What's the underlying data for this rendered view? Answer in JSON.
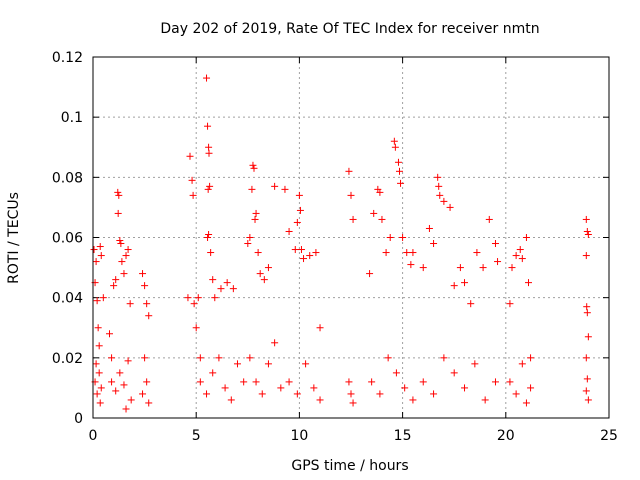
{
  "chart_data": {
    "type": "scatter",
    "title": "Day 202 of 2019, Rate Of TEC Index for receiver nmtn",
    "xlabel": "GPS time / hours",
    "ylabel": "ROTI / TECUs",
    "xlim": [
      0,
      25
    ],
    "ylim": [
      0,
      0.12
    ],
    "x_ticks": [
      "0",
      "5",
      "10",
      "15",
      "20",
      "25"
    ],
    "y_ticks": [
      "0",
      "0.02",
      "0.04",
      "0.06",
      "0.08",
      "0.1",
      "0.12"
    ],
    "x_tick_values": [
      0,
      5,
      10,
      15,
      20,
      25
    ],
    "y_tick_values": [
      0,
      0.02,
      0.04,
      0.06,
      0.08,
      0.1,
      0.12
    ],
    "grid": true,
    "marker": "plus",
    "color": "#ff0000",
    "series": [
      {
        "values_description_points": [
          [
            0.05,
            0.056
          ],
          [
            0.1,
            0.045
          ],
          [
            0.15,
            0.052
          ],
          [
            0.2,
            0.039
          ],
          [
            0.25,
            0.03
          ],
          [
            0.3,
            0.024
          ],
          [
            0.35,
            0.057
          ],
          [
            0.4,
            0.054
          ],
          [
            0.5,
            0.04
          ],
          [
            0.1,
            0.012
          ],
          [
            0.2,
            0.008
          ],
          [
            0.3,
            0.015
          ],
          [
            0.4,
            0.01
          ],
          [
            0.15,
            0.018
          ],
          [
            0.35,
            0.005
          ],
          [
            0.8,
            0.028
          ],
          [
            0.9,
            0.02
          ],
          [
            1.0,
            0.044
          ],
          [
            1.1,
            0.046
          ],
          [
            1.2,
            0.075
          ],
          [
            1.25,
            0.074
          ],
          [
            1.22,
            0.068
          ],
          [
            1.3,
            0.059
          ],
          [
            1.35,
            0.058
          ],
          [
            1.4,
            0.052
          ],
          [
            1.5,
            0.048
          ],
          [
            1.6,
            0.054
          ],
          [
            1.7,
            0.056
          ],
          [
            1.8,
            0.038
          ],
          [
            0.9,
            0.012
          ],
          [
            1.1,
            0.009
          ],
          [
            1.3,
            0.015
          ],
          [
            1.5,
            0.011
          ],
          [
            1.7,
            0.019
          ],
          [
            1.85,
            0.006
          ],
          [
            1.6,
            0.003
          ],
          [
            2.4,
            0.048
          ],
          [
            2.5,
            0.044
          ],
          [
            2.6,
            0.038
          ],
          [
            2.7,
            0.034
          ],
          [
            2.5,
            0.02
          ],
          [
            2.6,
            0.012
          ],
          [
            2.4,
            0.008
          ],
          [
            2.7,
            0.005
          ],
          [
            4.6,
            0.04
          ],
          [
            4.7,
            0.087
          ],
          [
            4.8,
            0.079
          ],
          [
            4.85,
            0.074
          ],
          [
            4.9,
            0.038
          ],
          [
            5.0,
            0.03
          ],
          [
            5.1,
            0.04
          ],
          [
            5.2,
            0.02
          ],
          [
            5.5,
            0.113
          ],
          [
            5.55,
            0.097
          ],
          [
            5.6,
            0.09
          ],
          [
            5.62,
            0.088
          ],
          [
            5.65,
            0.077
          ],
          [
            5.58,
            0.076
          ],
          [
            5.6,
            0.061
          ],
          [
            5.55,
            0.06
          ],
          [
            5.7,
            0.055
          ],
          [
            5.8,
            0.046
          ],
          [
            5.9,
            0.04
          ],
          [
            6.2,
            0.043
          ],
          [
            6.5,
            0.045
          ],
          [
            6.8,
            0.043
          ],
          [
            5.2,
            0.012
          ],
          [
            5.5,
            0.008
          ],
          [
            5.8,
            0.015
          ],
          [
            6.1,
            0.02
          ],
          [
            6.4,
            0.01
          ],
          [
            6.7,
            0.006
          ],
          [
            7.0,
            0.018
          ],
          [
            7.3,
            0.012
          ],
          [
            7.5,
            0.058
          ],
          [
            7.6,
            0.06
          ],
          [
            7.7,
            0.076
          ],
          [
            7.75,
            0.084
          ],
          [
            7.8,
            0.083
          ],
          [
            7.9,
            0.068
          ],
          [
            7.85,
            0.066
          ],
          [
            8.0,
            0.055
          ],
          [
            8.1,
            0.048
          ],
          [
            8.3,
            0.046
          ],
          [
            8.5,
            0.05
          ],
          [
            8.8,
            0.077
          ],
          [
            7.6,
            0.02
          ],
          [
            7.9,
            0.012
          ],
          [
            8.2,
            0.008
          ],
          [
            8.5,
            0.018
          ],
          [
            8.8,
            0.025
          ],
          [
            9.1,
            0.01
          ],
          [
            9.3,
            0.076
          ],
          [
            9.5,
            0.062
          ],
          [
            9.8,
            0.056
          ],
          [
            9.9,
            0.065
          ],
          [
            10.0,
            0.074
          ],
          [
            10.05,
            0.069
          ],
          [
            10.1,
            0.056
          ],
          [
            10.2,
            0.053
          ],
          [
            10.5,
            0.054
          ],
          [
            10.8,
            0.055
          ],
          [
            11.0,
            0.03
          ],
          [
            9.5,
            0.012
          ],
          [
            9.9,
            0.008
          ],
          [
            10.3,
            0.018
          ],
          [
            10.7,
            0.01
          ],
          [
            11.0,
            0.006
          ],
          [
            12.4,
            0.082
          ],
          [
            12.5,
            0.074
          ],
          [
            12.6,
            0.066
          ],
          [
            12.4,
            0.012
          ],
          [
            12.5,
            0.008
          ],
          [
            12.6,
            0.005
          ],
          [
            13.4,
            0.048
          ],
          [
            13.6,
            0.068
          ],
          [
            13.8,
            0.076
          ],
          [
            13.9,
            0.075
          ],
          [
            14.0,
            0.066
          ],
          [
            14.2,
            0.055
          ],
          [
            14.4,
            0.06
          ],
          [
            14.6,
            0.092
          ],
          [
            14.65,
            0.09
          ],
          [
            14.8,
            0.085
          ],
          [
            14.85,
            0.082
          ],
          [
            14.9,
            0.078
          ],
          [
            15.0,
            0.06
          ],
          [
            15.2,
            0.055
          ],
          [
            15.4,
            0.051
          ],
          [
            15.5,
            0.055
          ],
          [
            13.5,
            0.012
          ],
          [
            13.9,
            0.008
          ],
          [
            14.3,
            0.02
          ],
          [
            14.7,
            0.015
          ],
          [
            15.1,
            0.01
          ],
          [
            15.5,
            0.006
          ],
          [
            16.0,
            0.05
          ],
          [
            16.3,
            0.063
          ],
          [
            16.5,
            0.058
          ],
          [
            16.7,
            0.08
          ],
          [
            16.75,
            0.077
          ],
          [
            16.8,
            0.074
          ],
          [
            17.0,
            0.072
          ],
          [
            17.3,
            0.07
          ],
          [
            17.5,
            0.044
          ],
          [
            17.8,
            0.05
          ],
          [
            18.0,
            0.045
          ],
          [
            18.3,
            0.038
          ],
          [
            18.6,
            0.055
          ],
          [
            18.9,
            0.05
          ],
          [
            19.2,
            0.066
          ],
          [
            19.5,
            0.058
          ],
          [
            19.6,
            0.052
          ],
          [
            16.0,
            0.012
          ],
          [
            16.5,
            0.008
          ],
          [
            17.0,
            0.02
          ],
          [
            17.5,
            0.015
          ],
          [
            18.0,
            0.01
          ],
          [
            18.5,
            0.018
          ],
          [
            19.0,
            0.006
          ],
          [
            19.5,
            0.012
          ],
          [
            20.2,
            0.038
          ],
          [
            20.3,
            0.05
          ],
          [
            20.5,
            0.054
          ],
          [
            20.7,
            0.056
          ],
          [
            20.8,
            0.053
          ],
          [
            21.0,
            0.06
          ],
          [
            21.1,
            0.045
          ],
          [
            21.2,
            0.02
          ],
          [
            20.2,
            0.012
          ],
          [
            20.5,
            0.008
          ],
          [
            20.8,
            0.018
          ],
          [
            21.0,
            0.005
          ],
          [
            21.2,
            0.01
          ],
          [
            23.9,
            0.066
          ],
          [
            23.95,
            0.062
          ],
          [
            24.0,
            0.061
          ],
          [
            23.9,
            0.054
          ],
          [
            23.92,
            0.037
          ],
          [
            23.95,
            0.035
          ],
          [
            24.0,
            0.027
          ],
          [
            23.9,
            0.02
          ],
          [
            23.95,
            0.013
          ],
          [
            23.9,
            0.009
          ],
          [
            24.0,
            0.006
          ]
        ]
      }
    ]
  }
}
